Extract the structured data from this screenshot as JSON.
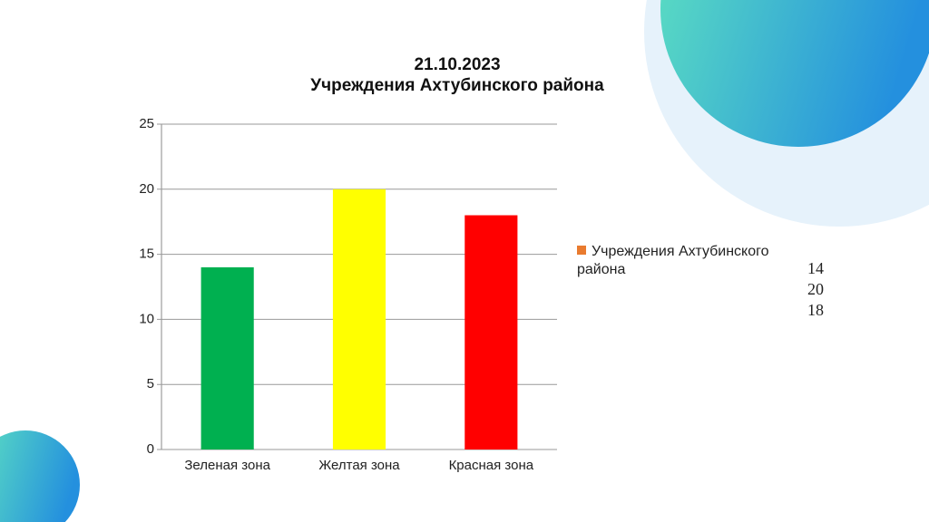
{
  "chart_data": {
    "type": "bar",
    "title": "21.10.2023",
    "subtitle": "Учреждения Ахтубинского района",
    "categories": [
      "Зеленая зона",
      "Желтая зона",
      "Красная зона"
    ],
    "series": [
      {
        "name": "Учреждения Ахтубинского района",
        "color": "#e97b2f",
        "bar_colors": [
          "#00b050",
          "#ffff00",
          "#ff0000"
        ],
        "values": [
          14,
          20,
          18
        ]
      }
    ],
    "ylim": [
      0,
      25
    ],
    "yticks": [
      0,
      5,
      10,
      15,
      20,
      25
    ],
    "grid": true,
    "legend": "right"
  }
}
